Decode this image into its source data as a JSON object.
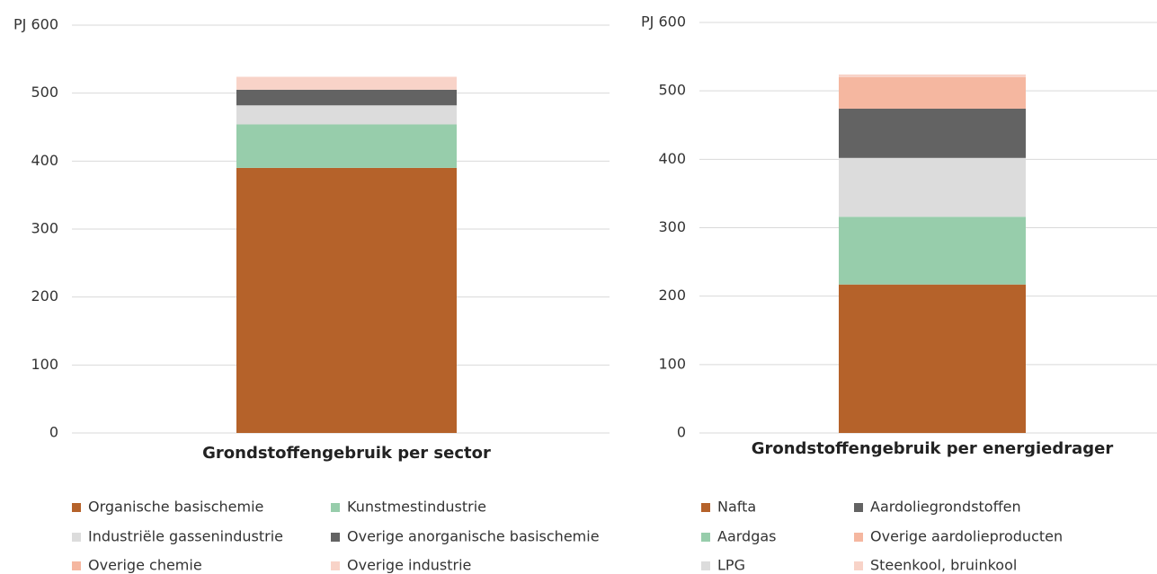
{
  "chart_data": [
    {
      "type": "stacked_bar",
      "categories": [
        "Grondstoffengebruik per sector"
      ],
      "series": [
        {
          "name": "Organische basischemie",
          "color": "#b5622a",
          "values": [
            390
          ]
        },
        {
          "name": "Kunstmestindustrie",
          "color": "#97cdab",
          "values": [
            64
          ]
        },
        {
          "name": "Industriële gassenindustrie",
          "color": "#dcdcdc",
          "values": [
            28
          ]
        },
        {
          "name": "Overige anorganische basischemie",
          "color": "#636363",
          "values": [
            23
          ]
        },
        {
          "name": "Overige chemie",
          "color": "#f5b7a0",
          "values": [
            0
          ]
        },
        {
          "name": "Overige industrie",
          "color": "#f8d3c8",
          "values": [
            19
          ]
        }
      ],
      "ylim": [
        0,
        600
      ],
      "yticks": [
        0,
        100,
        200,
        300,
        400,
        500,
        {
          "value": 600,
          "label": "PJ 600"
        }
      ],
      "grid": true,
      "legend": "bottom",
      "legend_flow": "row"
    },
    {
      "type": "stacked_bar",
      "categories": [
        "Grondstoffengebruik per energiedrager"
      ],
      "series": [
        {
          "name": "Nafta",
          "color": "#b5622a",
          "values": [
            217
          ]
        },
        {
          "name": "Aardgas",
          "color": "#97cdab",
          "values": [
            99
          ]
        },
        {
          "name": "LPG",
          "color": "#dcdcdc",
          "values": [
            86
          ]
        },
        {
          "name": "Aardoliegrondstoffen",
          "color": "#636363",
          "values": [
            72
          ]
        },
        {
          "name": "Overige aardolieproducten",
          "color": "#f5b7a0",
          "values": [
            46
          ]
        },
        {
          "name": "Steenkool, bruinkool",
          "color": "#f8d3c8",
          "values": [
            4
          ]
        }
      ],
      "ylim": [
        0,
        600
      ],
      "yticks": [
        0,
        100,
        200,
        300,
        400,
        500,
        {
          "value": 600,
          "label": "PJ 600"
        }
      ],
      "grid": true,
      "legend": "bottom",
      "legend_flow": "column"
    }
  ]
}
